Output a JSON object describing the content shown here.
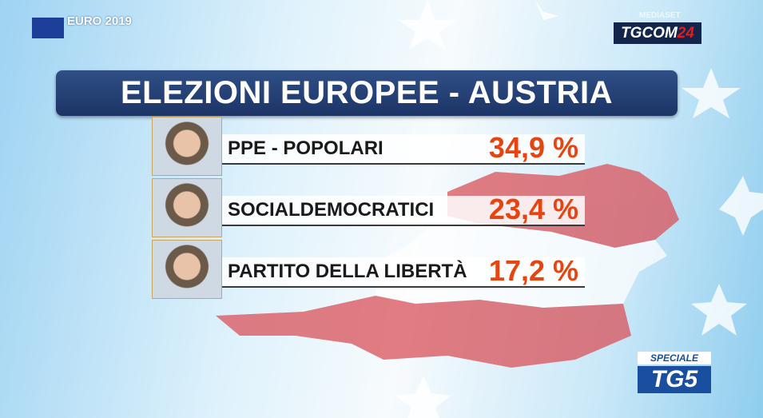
{
  "header": {
    "title": "ELEZIONI EUROPEE - AUSTRIA"
  },
  "logos": {
    "event": "EURO 2019",
    "network": "MEDIASET",
    "channel_main": "TGCOM",
    "channel_number": "24",
    "show_tag": "SPECIALE",
    "show": "TG5"
  },
  "results": [
    {
      "party": "PPE - POPOLARI",
      "result": "34,9 %"
    },
    {
      "party": "SOCIALDEMOCRATICI",
      "result": "23,4 %"
    },
    {
      "party": "PARTITO DELLA LIBERTÀ",
      "result": "17,2 %"
    }
  ]
}
